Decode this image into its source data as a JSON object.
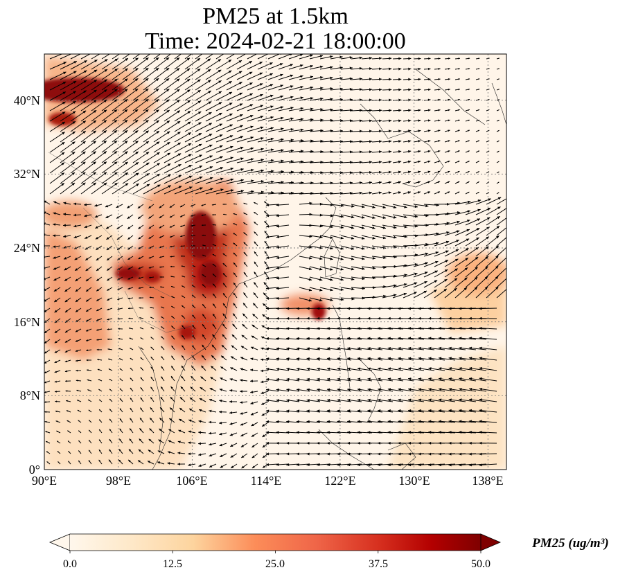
{
  "title_line1": "PM25 at 1.5km",
  "title_line2": "Time: 2024-02-21 18:00:00",
  "map": {
    "lon_range": [
      90,
      140
    ],
    "lat_range": [
      0,
      45
    ],
    "lon_ticks": [
      90,
      98,
      106,
      114,
      122,
      130,
      138
    ],
    "lat_ticks": [
      0,
      8,
      16,
      24,
      32,
      40
    ],
    "lon_tick_labels": [
      "90°E",
      "98°E",
      "106°E",
      "114°E",
      "122°E",
      "130°E",
      "138°E"
    ],
    "lat_tick_labels": [
      "0°",
      "8°N",
      "16°N",
      "24°N",
      "32°N",
      "40°N"
    ],
    "gridlines": "dotted",
    "colormap": "OrRd",
    "variable": "PM25",
    "overlay": "wind vectors"
  },
  "colorbar": {
    "label": "PM25 (ug/m³)",
    "min": 0.0,
    "max": 50.0,
    "ticks": [
      "0.0",
      "12.5",
      "25.0",
      "37.5",
      "50.0"
    ],
    "extend": "both",
    "colors": [
      "#fff7ec",
      "#fdd49e",
      "#fdbb84",
      "#fc8d59",
      "#ef6548",
      "#d7301f",
      "#b30000",
      "#7f0000"
    ]
  }
}
